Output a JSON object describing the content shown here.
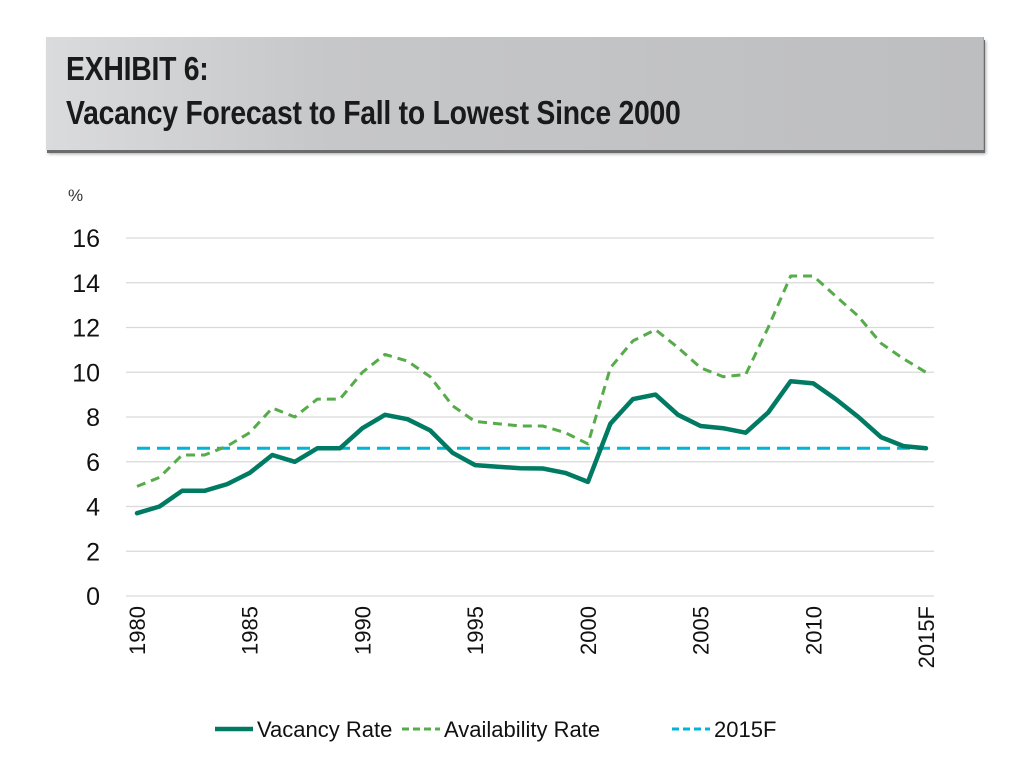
{
  "header": {
    "line1": "EXHIBIT 6:",
    "line2": "Vacancy Forecast to Fall to Lowest Since 2000"
  },
  "colors": {
    "vacancy": "#007a62",
    "availability": "#56ab4a",
    "reference": "#00b5d6",
    "grid": "#d9d9d9"
  },
  "chart_data": {
    "type": "line",
    "title": "Vacancy Forecast to Fall to Lowest Since 2000",
    "subtitle": "EXHIBIT 6:",
    "xlabel": "",
    "ylabel": "%",
    "ylim": [
      0,
      16
    ],
    "yticks": [
      0,
      2,
      4,
      6,
      8,
      10,
      12,
      14,
      16
    ],
    "grid": true,
    "legend_position": "bottom",
    "x": [
      1980,
      1981,
      1982,
      1983,
      1984,
      1985,
      1986,
      1987,
      1988,
      1989,
      1990,
      1991,
      1992,
      1993,
      1994,
      1995,
      1996,
      1997,
      1998,
      1999,
      2000,
      2001,
      2002,
      2003,
      2004,
      2005,
      2006,
      2007,
      2008,
      2009,
      2010,
      2011,
      2012,
      2013,
      2014,
      2015
    ],
    "xtick_labels": [
      {
        "x": 1980,
        "label": "1980"
      },
      {
        "x": 1985,
        "label": "1985"
      },
      {
        "x": 1990,
        "label": "1990"
      },
      {
        "x": 1995,
        "label": "1995"
      },
      {
        "x": 2000,
        "label": "2000"
      },
      {
        "x": 2005,
        "label": "2005"
      },
      {
        "x": 2010,
        "label": "2010"
      },
      {
        "x": 2015,
        "label": "2015F"
      }
    ],
    "series": [
      {
        "name": "Vacancy Rate",
        "style": "solid",
        "values": [
          3.7,
          4.0,
          4.7,
          4.7,
          5.0,
          5.5,
          6.3,
          6.0,
          6.6,
          6.6,
          7.5,
          8.1,
          7.9,
          7.4,
          6.4,
          5.85,
          5.78,
          5.71,
          5.7,
          5.5,
          5.1,
          7.7,
          8.8,
          9.0,
          8.1,
          7.6,
          7.5,
          7.3,
          8.2,
          9.6,
          9.5,
          8.8,
          8.0,
          7.1,
          6.7,
          6.6
        ]
      },
      {
        "name": "Availability Rate",
        "style": "dashed",
        "values": [
          4.9,
          5.3,
          6.3,
          6.3,
          6.7,
          7.3,
          8.4,
          8.0,
          8.8,
          8.8,
          10.0,
          10.8,
          10.5,
          9.8,
          8.5,
          7.8,
          7.7,
          7.6,
          7.6,
          7.3,
          6.8,
          10.2,
          11.4,
          11.9,
          11.1,
          10.2,
          9.8,
          9.9,
          12.0,
          14.3,
          14.3,
          13.4,
          12.5,
          11.3,
          10.6,
          10.0
        ]
      },
      {
        "name": "2015F",
        "style": "dashed",
        "values": [
          6.6,
          6.6,
          6.6,
          6.6,
          6.6,
          6.6,
          6.6,
          6.6,
          6.6,
          6.6,
          6.6,
          6.6,
          6.6,
          6.6,
          6.6,
          6.6,
          6.6,
          6.6,
          6.6,
          6.6,
          6.6,
          6.6,
          6.6,
          6.6,
          6.6,
          6.6,
          6.6,
          6.6,
          6.6,
          6.6,
          6.6,
          6.6,
          6.6,
          6.6,
          6.6,
          6.6
        ]
      }
    ]
  }
}
